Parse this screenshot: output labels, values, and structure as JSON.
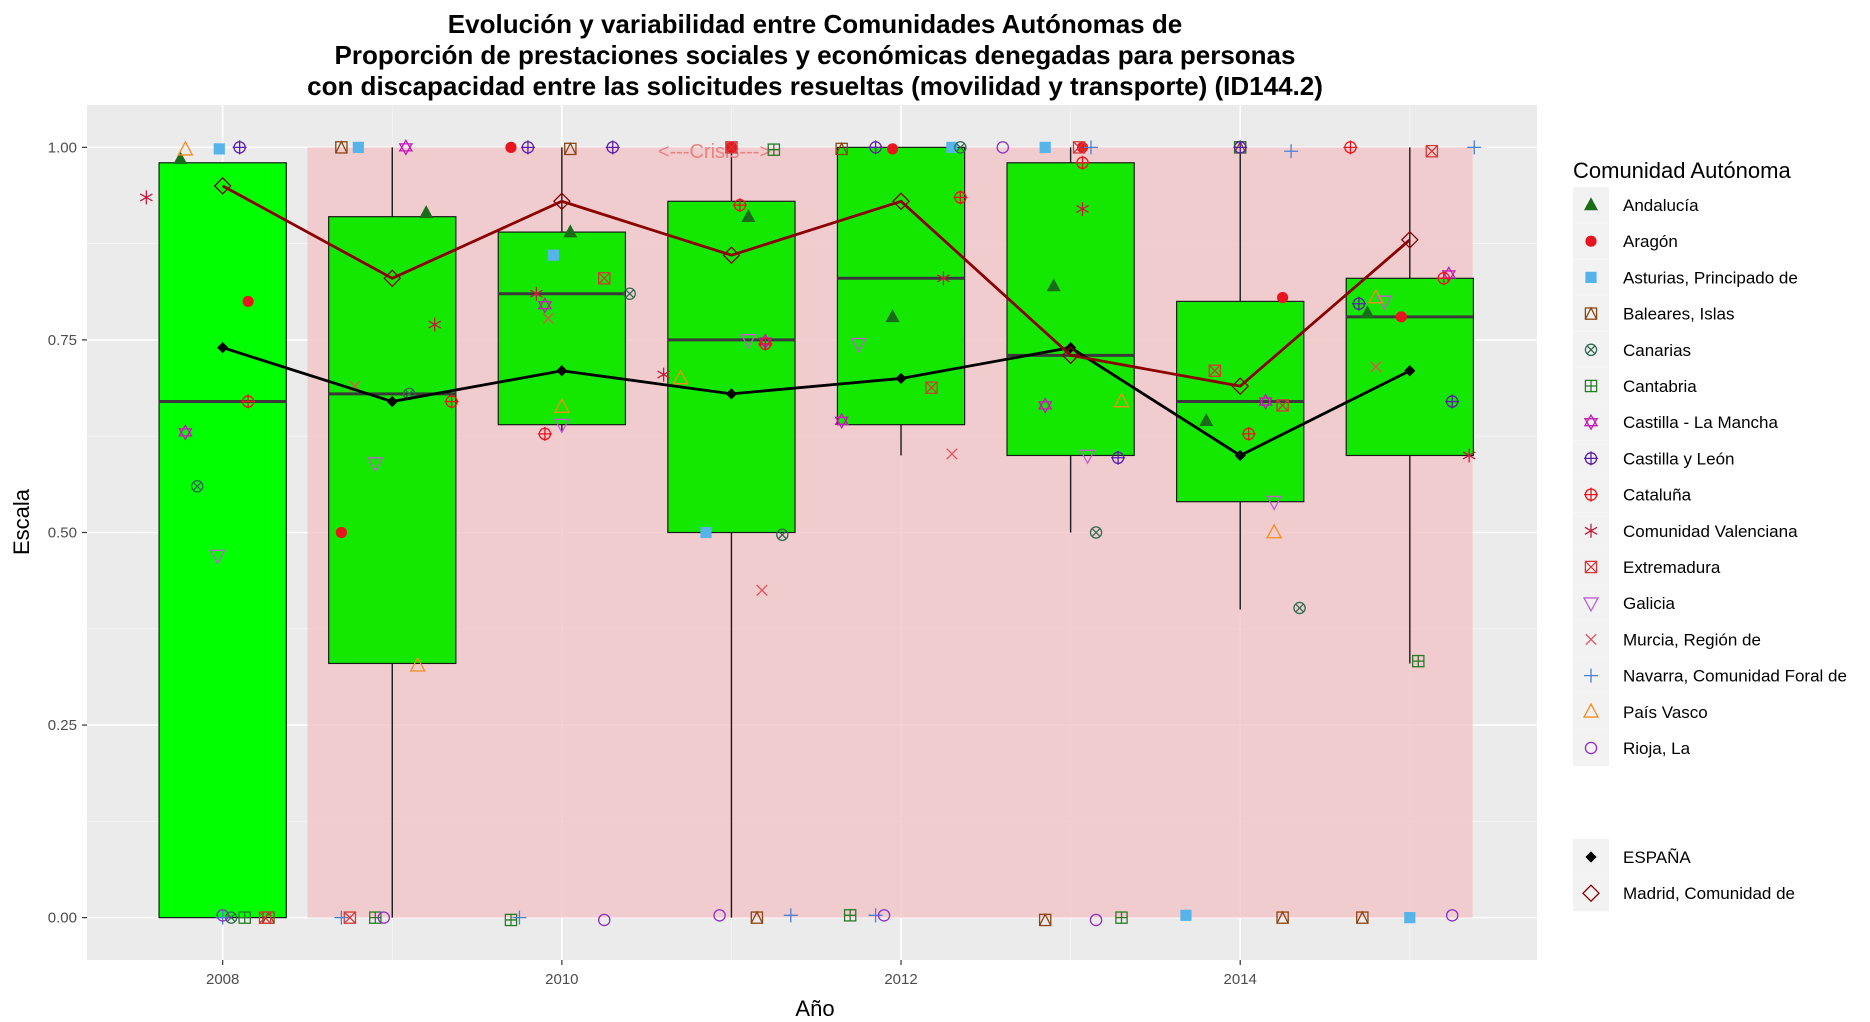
{
  "chart_data": {
    "type": "box",
    "title": [
      "Evolución y variabilidad entre Comunidades Autónomas de",
      "Proporción de prestaciones sociales y económicas denegadas para personas",
      "con discapacidad entre las solicitudes resueltas (movilidad y transporte) (ID144.2)"
    ],
    "xlabel": "Año",
    "ylabel": "Escala",
    "xlim": [
      2007.2,
      2015.75
    ],
    "ylim": [
      -0.055,
      1.055
    ],
    "x_ticks": [
      2008,
      2010,
      2012,
      2014
    ],
    "y_ticks": [
      0,
      0.25,
      0.5,
      0.75,
      1
    ],
    "y_tick_labels": [
      "0.00",
      "0.25",
      "0.50",
      "0.75",
      "1.00"
    ],
    "grid": true,
    "crisis": {
      "label": "<---Crisis--->",
      "x_start": 2008.5,
      "x_end": 2015.37,
      "label_x": 2010.9,
      "label_y": 0.995
    },
    "boxes": [
      {
        "year": 2008,
        "min": 0,
        "q1": 0,
        "median": 0.67,
        "q3": 0.98,
        "max": 0.98,
        "fill": "#00ff00"
      },
      {
        "year": 2009,
        "min": 0,
        "q1": 0.33,
        "median": 0.68,
        "q3": 0.91,
        "max": 1.0,
        "fill": "#14e800"
      },
      {
        "year": 2010,
        "min": 0.63,
        "q1": 0.64,
        "median": 0.81,
        "q3": 0.89,
        "max": 1.0,
        "fill": "#14e800"
      },
      {
        "year": 2011,
        "min": 0,
        "q1": 0.5,
        "median": 0.75,
        "q3": 0.93,
        "max": 1.0,
        "fill": "#14e800"
      },
      {
        "year": 2012,
        "min": 0.6,
        "q1": 0.64,
        "median": 0.83,
        "q3": 1.0,
        "max": 1.0,
        "fill": "#14e800"
      },
      {
        "year": 2013,
        "min": 0.5,
        "q1": 0.6,
        "median": 0.73,
        "q3": 0.98,
        "max": 1.0,
        "fill": "#14e800"
      },
      {
        "year": 2014,
        "min": 0.4,
        "q1": 0.54,
        "median": 0.67,
        "q3": 0.8,
        "max": 1.0,
        "fill": "#14e800"
      },
      {
        "year": 2015,
        "min": 0.33,
        "q1": 0.6,
        "median": 0.78,
        "q3": 0.83,
        "max": 1.0,
        "fill": "#14e800"
      }
    ],
    "series": [
      {
        "name": "Andalucía",
        "shape": "triangle-filled",
        "color": "#1a6b1a",
        "points": [
          [
            2007.75,
            0.985
          ],
          [
            2009.2,
            0.915
          ],
          [
            2010.05,
            0.89
          ],
          [
            2011.1,
            0.91
          ],
          [
            2011.95,
            0.78
          ],
          [
            2012.9,
            0.82
          ],
          [
            2013.8,
            0.645
          ],
          [
            2014.75,
            0.785
          ]
        ]
      },
      {
        "name": "Aragón",
        "shape": "circle-filled",
        "color": "#e8141e",
        "points": [
          [
            2008.15,
            0.8
          ],
          [
            2008.7,
            0.5
          ],
          [
            2009.7,
            1.0
          ],
          [
            2011.0,
            1.0
          ],
          [
            2011.95,
            0.998
          ],
          [
            2013.07,
            1.0
          ],
          [
            2014.25,
            0.805
          ],
          [
            2014.95,
            0.78
          ]
        ]
      },
      {
        "name": "Asturias, Principado de",
        "shape": "square-filled",
        "color": "#56b4e9",
        "points": [
          [
            2007.98,
            0.998
          ],
          [
            2008.8,
            1.0
          ],
          [
            2009.95,
            0.86
          ],
          [
            2010.85,
            0.5
          ],
          [
            2012.3,
            1.0
          ],
          [
            2012.85,
            1.0
          ],
          [
            2013.68,
            0.003
          ],
          [
            2015.0,
            0.0
          ]
        ]
      },
      {
        "name": "Baleares, Islas",
        "shape": "square-cross",
        "color": "#8b4513",
        "points": [
          [
            2008.27,
            0.0
          ],
          [
            2008.7,
            1.0
          ],
          [
            2010.05,
            0.998
          ],
          [
            2011.15,
            0.0
          ],
          [
            2011.65,
            0.998
          ],
          [
            2012.85,
            -0.003
          ],
          [
            2014.25,
            0.0
          ],
          [
            2014.72,
            0.0
          ],
          [
            2014.0,
            1.0
          ]
        ]
      },
      {
        "name": "Canarias",
        "shape": "circle-x",
        "color": "#2f6b4f",
        "points": [
          [
            2007.85,
            0.56
          ],
          [
            2009.1,
            0.68
          ],
          [
            2010.4,
            0.81
          ],
          [
            2011.3,
            0.497
          ],
          [
            2012.35,
            1.0
          ],
          [
            2013.15,
            0.5
          ],
          [
            2014.35,
            0.402
          ],
          [
            2008.05,
            0.0
          ]
        ]
      },
      {
        "name": "Cantabria",
        "shape": "square-plus",
        "color": "#2a7a2a",
        "points": [
          [
            2008.13,
            0.0
          ],
          [
            2008.9,
            0.0
          ],
          [
            2009.7,
            -0.003
          ],
          [
            2011.25,
            0.997
          ],
          [
            2011.7,
            0.003
          ],
          [
            2013.3,
            0.0
          ],
          [
            2014.0,
            1.0
          ],
          [
            2015.05,
            0.333
          ]
        ]
      },
      {
        "name": "Castilla - La Mancha",
        "shape": "star-of-david",
        "color": "#c41ab4",
        "points": [
          [
            2007.78,
            0.63
          ],
          [
            2009.08,
            1.0
          ],
          [
            2009.9,
            0.795
          ],
          [
            2011.2,
            0.748
          ],
          [
            2011.65,
            0.645
          ],
          [
            2012.85,
            0.665
          ],
          [
            2014.15,
            0.67
          ],
          [
            2015.23,
            0.835
          ]
        ]
      },
      {
        "name": "Castilla y León",
        "shape": "circle-plus",
        "color": "#5b1fa8",
        "points": [
          [
            2008.1,
            1.0
          ],
          [
            2009.8,
            1.0
          ],
          [
            2010.3,
            1.0
          ],
          [
            2011.85,
            1.0
          ],
          [
            2013.28,
            0.597
          ],
          [
            2014.0,
            1.0
          ],
          [
            2014.7,
            0.797
          ],
          [
            2015.25,
            0.67
          ]
        ]
      },
      {
        "name": "Cataluña",
        "shape": "circle-plus",
        "color": "#e8141e",
        "points": [
          [
            2008.15,
            0.67
          ],
          [
            2009.35,
            0.67
          ],
          [
            2009.9,
            0.628
          ],
          [
            2011.05,
            0.925
          ],
          [
            2011.2,
            0.745
          ],
          [
            2012.35,
            0.935
          ],
          [
            2013.07,
            0.98
          ],
          [
            2014.05,
            0.628
          ],
          [
            2014.65,
            1.0
          ],
          [
            2015.2,
            0.83
          ]
        ]
      },
      {
        "name": "Comunidad Valenciana",
        "shape": "asterisk",
        "color": "#c41a3c",
        "points": [
          [
            2007.55,
            0.935
          ],
          [
            2009.25,
            0.77
          ],
          [
            2009.85,
            0.81
          ],
          [
            2010.6,
            0.705
          ],
          [
            2012.25,
            0.83
          ],
          [
            2013.07,
            0.92
          ],
          [
            2015.35,
            0.6
          ]
        ]
      },
      {
        "name": "Extremadura",
        "shape": "square-x",
        "color": "#d23a3a",
        "points": [
          [
            2008.25,
            0.0
          ],
          [
            2008.75,
            0.0
          ],
          [
            2010.25,
            0.83
          ],
          [
            2011.0,
            1.0
          ],
          [
            2012.18,
            0.688
          ],
          [
            2013.05,
            1.0
          ],
          [
            2014.25,
            0.665
          ],
          [
            2015.13,
            0.995
          ],
          [
            2013.85,
            0.71
          ]
        ]
      },
      {
        "name": "Galicia",
        "shape": "triangle-down",
        "color": "#c35cd9",
        "points": [
          [
            2007.97,
            0.47
          ],
          [
            2008.9,
            0.59
          ],
          [
            2010.0,
            0.64
          ],
          [
            2011.1,
            0.75
          ],
          [
            2011.75,
            0.745
          ],
          [
            2013.1,
            0.6
          ],
          [
            2014.2,
            0.54
          ],
          [
            2014.85,
            0.8
          ]
        ]
      },
      {
        "name": "Murcia, Región de",
        "shape": "x",
        "color": "#e8505a",
        "points": [
          [
            2008.78,
            0.69
          ],
          [
            2009.92,
            0.778
          ],
          [
            2011.18,
            0.425
          ],
          [
            2012.3,
            0.602
          ],
          [
            2014.8,
            0.715
          ]
        ]
      },
      {
        "name": "Navarra, Comunidad Foral de",
        "shape": "plus",
        "color": "#4a7fd4",
        "points": [
          [
            2008.0,
            0.0
          ],
          [
            2008.7,
            0.0
          ],
          [
            2009.75,
            0.0
          ],
          [
            2011.35,
            0.003
          ],
          [
            2011.85,
            0.003
          ],
          [
            2013.12,
            1.0
          ],
          [
            2014.3,
            0.995
          ],
          [
            2015.38,
            1.0
          ]
        ]
      },
      {
        "name": "País Vasco",
        "shape": "triangle-open",
        "color": "#f28c1e",
        "points": [
          [
            2007.78,
            0.997
          ],
          [
            2009.15,
            0.327
          ],
          [
            2010.0,
            0.663
          ],
          [
            2010.7,
            0.7
          ],
          [
            2013.3,
            0.67
          ],
          [
            2014.2,
            0.5
          ],
          [
            2014.8,
            0.805
          ]
        ]
      },
      {
        "name": "Rioja, La",
        "shape": "circle-open",
        "color": "#8b2fc9",
        "points": [
          [
            2008.0,
            0.003
          ],
          [
            2008.95,
            0.0
          ],
          [
            2010.25,
            -0.003
          ],
          [
            2010.93,
            0.003
          ],
          [
            2011.9,
            0.003
          ],
          [
            2012.6,
            1.0
          ],
          [
            2013.15,
            -0.003
          ],
          [
            2015.25,
            0.003
          ]
        ]
      }
    ],
    "lines": [
      {
        "name": "ESPAÑA",
        "shape": "diamond-filled",
        "color": "#000000",
        "x": [
          2008,
          2009,
          2010,
          2011,
          2012,
          2013,
          2014,
          2015
        ],
        "y": [
          0.74,
          0.67,
          0.71,
          0.68,
          0.7,
          0.74,
          0.6,
          0.71
        ]
      },
      {
        "name": "Madrid, Comunidad de",
        "shape": "diamond-open",
        "color": "#8b0000",
        "x": [
          2008,
          2009,
          2010,
          2011,
          2012,
          2013,
          2014,
          2015
        ],
        "y": [
          0.95,
          0.83,
          0.93,
          0.86,
          0.93,
          0.73,
          0.69,
          0.88
        ]
      }
    ],
    "legend": {
      "title": "Comunidad Autónoma",
      "placement": "right",
      "entries_main": [
        "Andalucía",
        "Aragón",
        "Asturias, Principado de",
        "Baleares, Islas",
        "Canarias",
        "Cantabria",
        "Castilla - La Mancha",
        "Castilla y León",
        "Cataluña",
        "Comunidad Valenciana",
        "Extremadura",
        "Galicia",
        "Murcia, Región de",
        "Navarra, Comunidad Foral de",
        "País Vasco",
        "Rioja, La"
      ],
      "entries_lines": [
        "ESPAÑA",
        "Madrid, Comunidad de"
      ]
    },
    "colors": {
      "panel_background": "#ebebeb",
      "grid": "#ffffff",
      "crisis_band": "#f2c4c8",
      "box_outline": "#1a1a1a",
      "median": "#3a3a3a"
    }
  }
}
